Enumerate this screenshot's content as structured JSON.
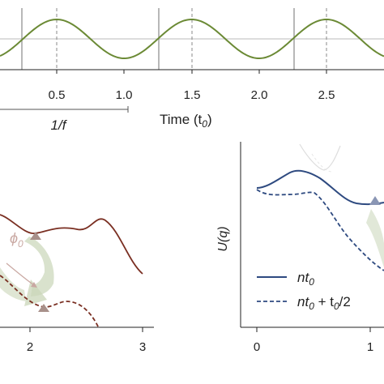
{
  "top_panel": {
    "tick_labels": [
      "0.5",
      "1.0",
      "1.5",
      "2.0",
      "2.5"
    ],
    "xlabel_main": "Time (t",
    "xlabel_sub": "0",
    "xlabel_close": ")",
    "period_label": "1/f",
    "wave_color": "#6b8a35"
  },
  "left_panel": {
    "tick_labels": [
      "2",
      "3"
    ],
    "phi_label": "ϕ",
    "phi_sub": "0",
    "solid_color": "#7a2f22",
    "dashed_color": "#7a2f22",
    "arrow_color": "#c9d6b8",
    "marker_color": "#a8908a"
  },
  "right_panel": {
    "ylabel": "U(q)",
    "tick_labels": [
      "0",
      "1"
    ],
    "legend": {
      "solid_main": "nt",
      "solid_sub": "0",
      "dashed_main": "nt",
      "dashed_sub": "0",
      "dashed_rest": " + t",
      "dashed_sub2": "0",
      "dashed_tail": "/2"
    },
    "line_color": "#2e4a80"
  }
}
